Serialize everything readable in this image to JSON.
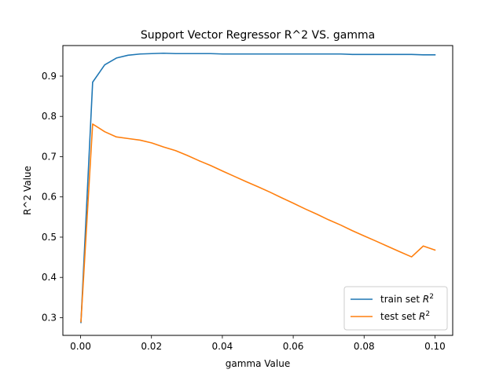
{
  "chart_data": {
    "type": "line",
    "title": "Support Vector Regressor R^2 VS. gamma",
    "xlabel": "gamma Value",
    "ylabel": "R^2 Value",
    "xlim": [
      -0.005,
      0.105
    ],
    "ylim": [
      0.256,
      0.976
    ],
    "xticks": [
      0.0,
      0.02,
      0.04,
      0.06,
      0.08,
      0.1
    ],
    "xtick_labels": [
      "0.00",
      "0.02",
      "0.04",
      "0.06",
      "0.08",
      "0.10"
    ],
    "yticks": [
      0.3,
      0.4,
      0.5,
      0.6,
      0.7,
      0.8,
      0.9
    ],
    "ytick_labels": [
      "0.3",
      "0.4",
      "0.5",
      "0.6",
      "0.7",
      "0.8",
      "0.9"
    ],
    "legend_position": "lower-right",
    "x": [
      0.0001,
      0.0034,
      0.0068,
      0.0101,
      0.0134,
      0.0168,
      0.0201,
      0.0234,
      0.0268,
      0.0301,
      0.0334,
      0.0367,
      0.0401,
      0.0434,
      0.0467,
      0.0501,
      0.0534,
      0.0567,
      0.0601,
      0.0634,
      0.0667,
      0.07,
      0.0734,
      0.0767,
      0.08,
      0.0834,
      0.0867,
      0.09,
      0.0934,
      0.0967,
      0.1
    ],
    "series": [
      {
        "name": "train set R²",
        "name_base": "train set ",
        "name_math": "R",
        "name_sup": "2",
        "color": "#1f77b4",
        "values": [
          0.288,
          0.885,
          0.928,
          0.945,
          0.952,
          0.955,
          0.956,
          0.957,
          0.956,
          0.956,
          0.956,
          0.956,
          0.955,
          0.955,
          0.955,
          0.955,
          0.955,
          0.955,
          0.955,
          0.955,
          0.955,
          0.955,
          0.955,
          0.954,
          0.954,
          0.954,
          0.954,
          0.954,
          0.954,
          0.953,
          0.953
        ]
      },
      {
        "name": "test set R²",
        "name_base": "test set ",
        "name_math": "R",
        "name_sup": "2",
        "color": "#ff7f0e",
        "values": [
          0.29,
          0.781,
          0.762,
          0.749,
          0.745,
          0.741,
          0.734,
          0.724,
          0.715,
          0.703,
          0.69,
          0.678,
          0.664,
          0.651,
          0.638,
          0.625,
          0.612,
          0.598,
          0.584,
          0.57,
          0.557,
          0.543,
          0.53,
          0.516,
          0.503,
          0.49,
          0.477,
          0.464,
          0.451,
          0.478,
          0.468
        ]
      }
    ]
  }
}
